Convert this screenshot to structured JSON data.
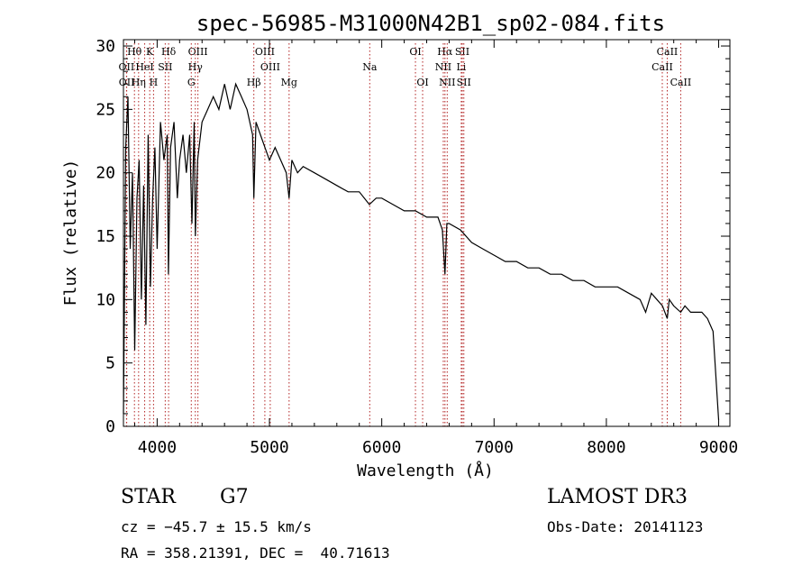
{
  "chart_data": {
    "type": "line",
    "title": "spec-56985-M31000N42B1_sp02-084.fits",
    "xlabel": "Wavelength (Å)",
    "ylabel": "Flux (relative)",
    "xlim": [
      3700,
      9100
    ],
    "ylim": [
      0,
      30.5
    ],
    "xticks": [
      4000,
      5000,
      6000,
      7000,
      8000,
      9000
    ],
    "yticks": [
      0,
      5,
      10,
      15,
      20,
      25,
      30
    ],
    "spectrum": {
      "name": "flux",
      "x": [
        3700,
        3720,
        3740,
        3760,
        3780,
        3800,
        3820,
        3840,
        3860,
        3880,
        3900,
        3920,
        3940,
        3960,
        3980,
        4000,
        4030,
        4060,
        4090,
        4100,
        4120,
        4150,
        4180,
        4200,
        4230,
        4260,
        4290,
        4310,
        4330,
        4340,
        4360,
        4400,
        4450,
        4500,
        4550,
        4600,
        4650,
        4700,
        4750,
        4800,
        4850,
        4861,
        4880,
        4920,
        4960,
        5000,
        5050,
        5100,
        5150,
        5175,
        5200,
        5250,
        5300,
        5400,
        5500,
        5600,
        5700,
        5800,
        5890,
        5950,
        6000,
        6100,
        6200,
        6300,
        6400,
        6500,
        6540,
        6563,
        6580,
        6600,
        6700,
        6800,
        6900,
        7000,
        7100,
        7200,
        7300,
        7400,
        7500,
        7600,
        7700,
        7800,
        7900,
        8000,
        8100,
        8200,
        8300,
        8350,
        8400,
        8450,
        8500,
        8542,
        8560,
        8600,
        8662,
        8700,
        8750,
        8800,
        8850,
        8900,
        8950,
        9000
      ],
      "y": [
        1,
        22,
        26,
        14,
        20,
        6,
        18,
        21,
        10,
        19,
        8,
        23,
        11,
        18,
        22,
        14,
        24,
        21,
        23,
        12,
        22,
        24,
        18,
        21,
        23,
        20,
        23,
        16,
        24,
        15,
        21,
        24,
        25,
        26,
        25,
        27,
        25,
        27,
        26,
        25,
        23,
        18,
        24,
        23,
        22,
        21,
        22,
        21,
        20,
        18,
        21,
        20,
        20.5,
        20,
        19.5,
        19,
        18.5,
        18.5,
        17.5,
        18,
        18,
        17.5,
        17,
        17,
        16.5,
        16.5,
        15.5,
        12,
        16,
        16,
        15.5,
        14.5,
        14,
        13.5,
        13,
        13,
        12.5,
        12.5,
        12,
        12,
        11.5,
        11.5,
        11,
        11,
        11,
        10.5,
        10,
        9,
        10.5,
        10,
        9.5,
        8.5,
        10,
        9.5,
        9,
        9.5,
        9,
        9,
        9,
        8.5,
        7.5,
        0.5
      ]
    },
    "lines": [
      {
        "name": "Hθ",
        "wl": 3798,
        "row": 0
      },
      {
        "name": "K",
        "wl": 3934,
        "row": 0
      },
      {
        "name": "Hδ",
        "wl": 4102,
        "row": 0
      },
      {
        "name": "OIII",
        "wl": 4363,
        "row": 0
      },
      {
        "name": "OIII",
        "wl": 4959,
        "row": 0
      },
      {
        "name": "OI",
        "wl": 6300,
        "row": 0
      },
      {
        "name": "Hα",
        "wl": 6563,
        "row": 0
      },
      {
        "name": "SII",
        "wl": 6717,
        "row": 0
      },
      {
        "name": "CaII",
        "wl": 8542,
        "row": 0
      },
      {
        "name": "OII",
        "wl": 3727,
        "row": 1
      },
      {
        "name": "HeI",
        "wl": 3889,
        "row": 1
      },
      {
        "name": "SII",
        "wl": 4072,
        "row": 1
      },
      {
        "name": "Hγ",
        "wl": 4340,
        "row": 1
      },
      {
        "name": "OIII",
        "wl": 5007,
        "row": 1
      },
      {
        "name": "Na",
        "wl": 5893,
        "row": 1
      },
      {
        "name": "NII",
        "wl": 6548,
        "row": 1
      },
      {
        "name": "Li",
        "wl": 6708,
        "row": 1
      },
      {
        "name": "CaII",
        "wl": 8498,
        "row": 1
      },
      {
        "name": "OII",
        "wl": 3729,
        "row": 2
      },
      {
        "name": "Hη",
        "wl": 3835,
        "row": 2
      },
      {
        "name": "H",
        "wl": 3968,
        "row": 2
      },
      {
        "name": "G",
        "wl": 4304,
        "row": 2
      },
      {
        "name": "Hβ",
        "wl": 4861,
        "row": 2
      },
      {
        "name": "Mg",
        "wl": 5175,
        "row": 2
      },
      {
        "name": "OI",
        "wl": 6364,
        "row": 2
      },
      {
        "name": "NII",
        "wl": 6583,
        "row": 2
      },
      {
        "name": "SII",
        "wl": 6731,
        "row": 2
      },
      {
        "name": "CaII",
        "wl": 8662,
        "row": 2
      }
    ]
  },
  "footer": {
    "object_class": "STAR",
    "subclass": "G7",
    "redshift": "cz = −45.7 ± 15.5 km/s",
    "coords": "RA = 358.21391, DEC =  40.71613",
    "survey": "LAMOST DR3",
    "obs_date": "Obs-Date: 20141123"
  },
  "colors": {
    "spectrum": "#000000",
    "line_marker": "#b22222",
    "axis": "#000000"
  }
}
